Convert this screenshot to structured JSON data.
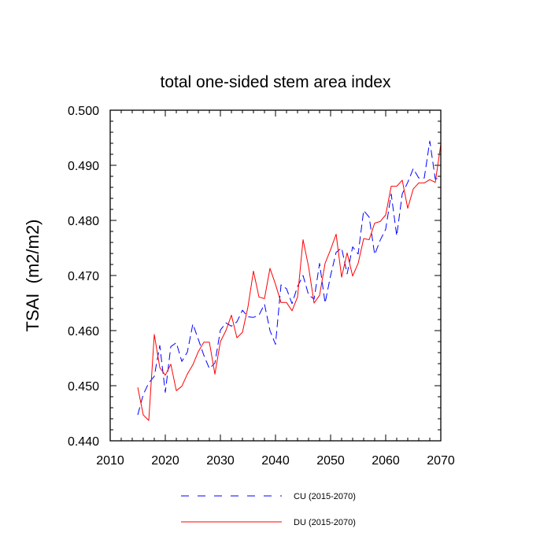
{
  "chart_data": {
    "type": "line",
    "title": "total one-sided stem area index",
    "xlabel": "",
    "ylabel": "TSAI  (m2/m2)",
    "xlim": [
      2010,
      2070
    ],
    "ylim": [
      0.44,
      0.5
    ],
    "x_ticks": [
      2010,
      2020,
      2030,
      2040,
      2050,
      2060,
      2070
    ],
    "x_tick_labels": [
      "2010",
      "2020",
      "2030",
      "2040",
      "2050",
      "2060",
      "2070"
    ],
    "y_ticks": [
      0.44,
      0.45,
      0.46,
      0.47,
      0.48,
      0.49,
      0.5
    ],
    "y_tick_labels": [
      "0.440",
      "0.450",
      "0.460",
      "0.470",
      "0.480",
      "0.490",
      "0.500"
    ],
    "x": [
      2015,
      2016,
      2017,
      2018,
      2019,
      2020,
      2021,
      2022,
      2023,
      2024,
      2025,
      2026,
      2027,
      2028,
      2029,
      2030,
      2031,
      2032,
      2033,
      2034,
      2035,
      2036,
      2037,
      2038,
      2039,
      2040,
      2041,
      2042,
      2043,
      2044,
      2045,
      2046,
      2047,
      2048,
      2049,
      2050,
      2051,
      2052,
      2053,
      2054,
      2055,
      2056,
      2057,
      2058,
      2059,
      2060,
      2061,
      2062,
      2063,
      2064,
      2065,
      2066,
      2067,
      2068,
      2069,
      2070
    ],
    "series": [
      {
        "name": "CU (2015-2070)",
        "color": "#0000ff",
        "style": "dashed",
        "values": [
          0.4447,
          0.4484,
          0.4505,
          0.4517,
          0.4573,
          0.4488,
          0.4571,
          0.4578,
          0.4544,
          0.4561,
          0.4612,
          0.4584,
          0.4555,
          0.4531,
          0.4541,
          0.4601,
          0.4614,
          0.4608,
          0.4616,
          0.4637,
          0.4625,
          0.4624,
          0.4628,
          0.4648,
          0.46,
          0.4575,
          0.4683,
          0.4676,
          0.4649,
          0.468,
          0.47,
          0.4665,
          0.4657,
          0.4722,
          0.465,
          0.47,
          0.4742,
          0.475,
          0.4703,
          0.4752,
          0.4739,
          0.4818,
          0.4806,
          0.4738,
          0.4764,
          0.4784,
          0.4848,
          0.4772,
          0.4848,
          0.4869,
          0.4894,
          0.4877,
          0.4877,
          0.4944,
          0.4875,
          0.4878
        ]
      },
      {
        "name": "DU (2015-2070)",
        "color": "#ff0000",
        "style": "solid",
        "values": [
          0.4497,
          0.4447,
          0.4437,
          0.4593,
          0.4533,
          0.4519,
          0.4539,
          0.4491,
          0.4499,
          0.4521,
          0.4538,
          0.4562,
          0.4579,
          0.4579,
          0.4521,
          0.458,
          0.46,
          0.4628,
          0.4587,
          0.4597,
          0.4643,
          0.4708,
          0.4661,
          0.4658,
          0.4713,
          0.4684,
          0.4651,
          0.4651,
          0.4636,
          0.4661,
          0.4765,
          0.4716,
          0.465,
          0.4664,
          0.4722,
          0.4747,
          0.4775,
          0.4697,
          0.4741,
          0.4699,
          0.4722,
          0.4767,
          0.4765,
          0.4795,
          0.4798,
          0.481,
          0.4862,
          0.4862,
          0.4873,
          0.4822,
          0.4857,
          0.4868,
          0.4868,
          0.4874,
          0.4869,
          0.4938
        ]
      }
    ],
    "legend_position": "bottom-center"
  }
}
